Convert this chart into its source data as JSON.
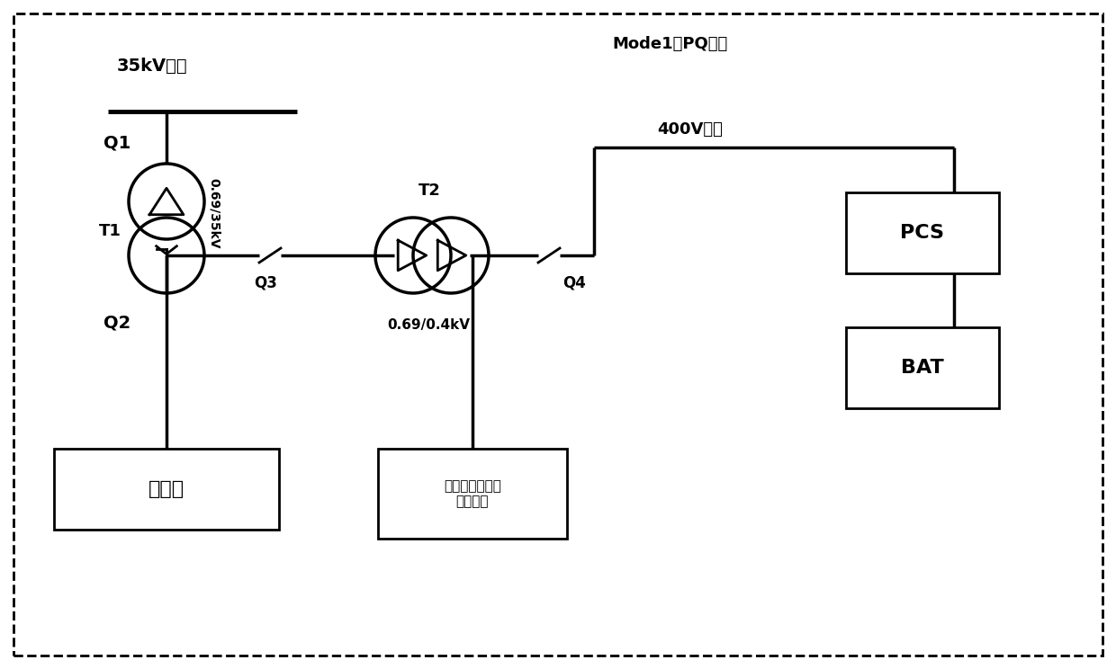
{
  "title_left": "35kV毛线",
  "title_right": "Mode1：PQ控制",
  "bus_400v_label": "400V毛线",
  "T1_label": "T1",
  "T2_label": "T2",
  "T1_ratio": "0.69/35kV",
  "T2_ratio": "0.69/0.4kV",
  "Q1_label": "Q1",
  "Q2_label": "Q2",
  "Q3_label": "Q3",
  "Q4_label": "Q4",
  "box1_label": "变流器",
  "box2_label": "风力发电机组自\n用电系统",
  "box3_label": "PCS",
  "box4_label": "BAT",
  "bg_color": "#ffffff",
  "line_color": "#000000",
  "border_color": "#000000",
  "font_color": "#000000"
}
